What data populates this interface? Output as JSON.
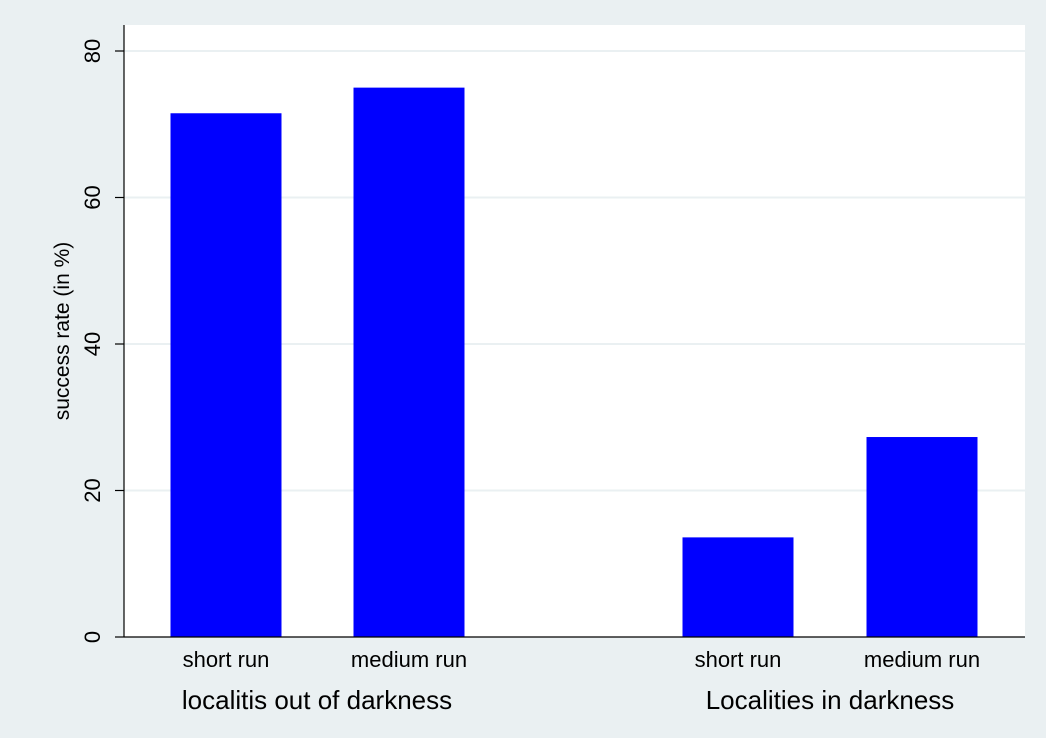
{
  "chart_data": {
    "type": "bar",
    "ylabel": "success rate (in %)",
    "ylim": [
      0,
      80
    ],
    "yticks": [
      0,
      20,
      40,
      60,
      80
    ],
    "grid": true,
    "colors": {
      "bar": "#0000ff",
      "outer_background": "#eaf0f2",
      "plot_background": "#ffffff",
      "gridline": "#eaf0f2",
      "axis": "#000000"
    },
    "groups": [
      {
        "label": "localitis out of darkness",
        "categories": [
          "short run",
          "medium run"
        ],
        "values": [
          71.5,
          75
        ]
      },
      {
        "label": "Localities in darkness",
        "categories": [
          "short run",
          "medium run"
        ],
        "values": [
          13.6,
          27.3
        ]
      }
    ]
  }
}
